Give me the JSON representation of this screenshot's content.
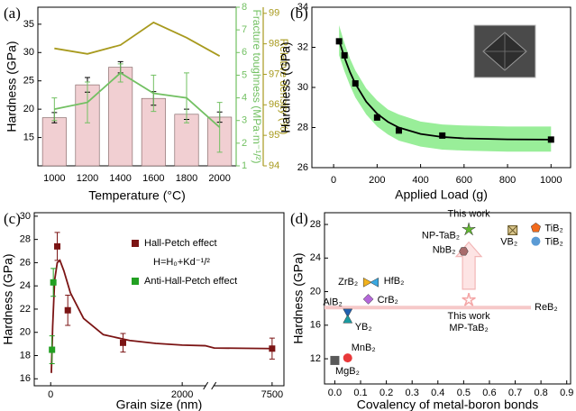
{
  "chart_data": [
    {
      "type": "bar",
      "panel_label": "(a)",
      "x_label": "Temperature (°C)",
      "y_label": "Hardness (GPa)",
      "y2_label": "Fracture toughness (MPa·m⁻¹/²)",
      "y3_label": "Relative density (%)",
      "categories": [
        "1000",
        "1200",
        "1400",
        "1600",
        "1800",
        "2000"
      ],
      "ylim": [
        10,
        38
      ],
      "yticks": [
        15,
        20,
        25,
        30,
        35
      ],
      "y2lim": [
        1,
        8
      ],
      "y2ticks": [
        1,
        2,
        3,
        4,
        5,
        6,
        7,
        8
      ],
      "y3lim": [
        94,
        99.2
      ],
      "y3ticks": [
        94,
        95,
        96,
        97,
        98,
        99
      ],
      "series": [
        {
          "axis": "y",
          "kind": "bar",
          "color": "#f1cfd2",
          "values": [
            18.5,
            24.3,
            27.4,
            21.9,
            19.1,
            18.6
          ],
          "errors": [
            0.9,
            1.3,
            1.0,
            1.2,
            0.9,
            0.9
          ]
        },
        {
          "axis": "y2",
          "kind": "line",
          "color": "#72c062",
          "values": [
            3.5,
            3.8,
            5.1,
            4.2,
            4.0,
            2.7
          ],
          "errors": [
            0.5,
            0.9,
            0.4,
            0.8,
            1.1,
            1.1
          ]
        },
        {
          "axis": "y3",
          "kind": "line",
          "color": "#a89a1e",
          "values": [
            97.85,
            97.67,
            97.96,
            98.7,
            98.2,
            97.6
          ]
        }
      ]
    },
    {
      "type": "scatter",
      "panel_label": "(b)",
      "x_label": "Applied Load (g)",
      "y_label": "Hardness (GPa)",
      "xlim": [
        -100,
        1090
      ],
      "xticks": [
        0,
        200,
        400,
        600,
        800,
        1000
      ],
      "ylim": [
        26,
        34
      ],
      "yticks": [
        26,
        28,
        30,
        32,
        34
      ],
      "series": [
        {
          "color": "#000000",
          "marker": "square",
          "x": [
            25,
            50,
            100,
            200,
            300,
            500,
            1000
          ],
          "values": [
            32.3,
            31.6,
            30.2,
            28.5,
            27.85,
            27.6,
            27.4
          ]
        }
      ],
      "fit": {
        "color": "#000000",
        "x": [
          25,
          50,
          75,
          100,
          150,
          200,
          250,
          300,
          400,
          500,
          600,
          800,
          1000
        ],
        "values": [
          32.35,
          31.49,
          30.77,
          30.18,
          29.29,
          28.69,
          28.28,
          28.0,
          27.68,
          27.53,
          27.46,
          27.41,
          27.4
        ]
      },
      "band": {
        "color": "#99ee99",
        "x": [
          25,
          50,
          75,
          100,
          150,
          200,
          250,
          300,
          400,
          500,
          600,
          800,
          1000
        ],
        "lower": [
          31.6,
          30.8,
          30.1,
          29.5,
          28.65,
          28.05,
          27.65,
          27.35,
          27.05,
          26.9,
          26.85,
          26.8,
          26.8
        ],
        "upper": [
          33.1,
          32.2,
          31.45,
          30.85,
          29.95,
          29.35,
          28.9,
          28.65,
          28.3,
          28.15,
          28.1,
          28.05,
          28.05
        ]
      }
    },
    {
      "type": "scatter",
      "panel_label": "(c)",
      "x_label": "Grain size (nm)",
      "y_label": "Hardness (GPa)",
      "xlim": [
        -250,
        7680
      ],
      "x_break": [
        2350,
        6620
      ],
      "xticks": [
        0,
        2000,
        7500
      ],
      "ylim": [
        15.4,
        30.3
      ],
      "yticks": [
        16,
        18,
        20,
        22,
        24,
        26,
        28,
        30
      ],
      "legend": "upper right",
      "annotation": "H=H₀+Kd⁻¹/²",
      "series": [
        {
          "name": "Hall-Petch effect",
          "color": "#7b1414",
          "marker": "square",
          "x": [
            100,
            260,
            1100,
            7500
          ],
          "values": [
            27.4,
            21.9,
            19.1,
            18.6
          ],
          "errors": [
            1.2,
            1.3,
            0.8,
            0.9
          ]
        },
        {
          "name": "Anti-Hall-Petch effect",
          "color": "#22a022",
          "marker": "square",
          "x": [
            20,
            40
          ],
          "values": [
            18.5,
            24.3
          ],
          "errors": [
            1.2,
            1.2
          ]
        }
      ],
      "fit": {
        "color": "#7b1414",
        "x": [
          10,
          30,
          60,
          100,
          140,
          200,
          300,
          500,
          800,
          1200,
          1600,
          2000,
          2350,
          6620,
          7500
        ],
        "values": [
          16.5,
          20.5,
          24.5,
          26.0,
          26.2,
          25.3,
          23.4,
          21.2,
          19.8,
          19.3,
          19.05,
          18.9,
          18.85,
          18.65,
          18.6
        ]
      }
    },
    {
      "type": "scatter",
      "panel_label": "(d)",
      "x_label": "Covalency of metal-boron bonds",
      "y_label": "Hardness (GPa)",
      "xlim": [
        -0.04,
        0.915
      ],
      "xticks": [
        {
          "value": 0,
          "label": "0.0"
        },
        0.1,
        0.2,
        0.3,
        0.4,
        0.5,
        0.6,
        0.7,
        0.8,
        0.9
      ],
      "ylim": [
        9.0,
        29.4
      ],
      "yticks": [
        12,
        16,
        20,
        24,
        28
      ],
      "reference_lines": [
        {
          "label": "ReB₂",
          "y": 18.1,
          "color": "#f6c9c9"
        }
      ],
      "points": [
        {
          "label": "MgB₂",
          "x": 0.0,
          "y": 11.8,
          "marker": "square",
          "color": "#5a5a5a"
        },
        {
          "label": "MnB₂",
          "x": 0.05,
          "y": 12.1,
          "marker": "circle",
          "color": "#e8393a"
        },
        {
          "label": "AlB₂",
          "x": 0.05,
          "y": 17.5,
          "marker": "triangle-down",
          "color": "#2060b0"
        },
        {
          "label": "YB₂",
          "x": 0.05,
          "y": 16.7,
          "marker": "triangle-up",
          "color": "#1a9aa0"
        },
        {
          "label": "ZrB₂",
          "x": 0.125,
          "y": 21.1,
          "marker": "triangle-right",
          "color": "#f2b21c"
        },
        {
          "label": "HfB₂",
          "x": 0.155,
          "y": 21.1,
          "marker": "triangle-left",
          "color": "#3aa8e0"
        },
        {
          "label": "CrB₂",
          "x": 0.13,
          "y": 19.1,
          "marker": "diamond",
          "color": "#b467d9"
        },
        {
          "label": "NbB₂",
          "x": 0.5,
          "y": 24.8,
          "marker": "hexagon",
          "color": "#a86b6b"
        },
        {
          "label": "NP-TaB₂",
          "note": "This work",
          "x": 0.52,
          "y": 27.4,
          "marker": "star",
          "color": "#62b830"
        },
        {
          "label": "MP-TaB₂",
          "note": "This work",
          "x": 0.52,
          "y": 19.0,
          "marker": "star-open",
          "color": "#f4a6a6"
        },
        {
          "label": "VB₂",
          "x": 0.69,
          "y": 27.3,
          "marker": "square-x",
          "color": "#d8c48a"
        },
        {
          "label": "TiB₂",
          "x": 0.78,
          "y": 27.6,
          "marker": "pentagon",
          "color": "#f26b1d"
        },
        {
          "label": "TiB₂",
          "x": 0.78,
          "y": 26.0,
          "marker": "circle",
          "color": "#5b9bd5"
        }
      ]
    }
  ]
}
